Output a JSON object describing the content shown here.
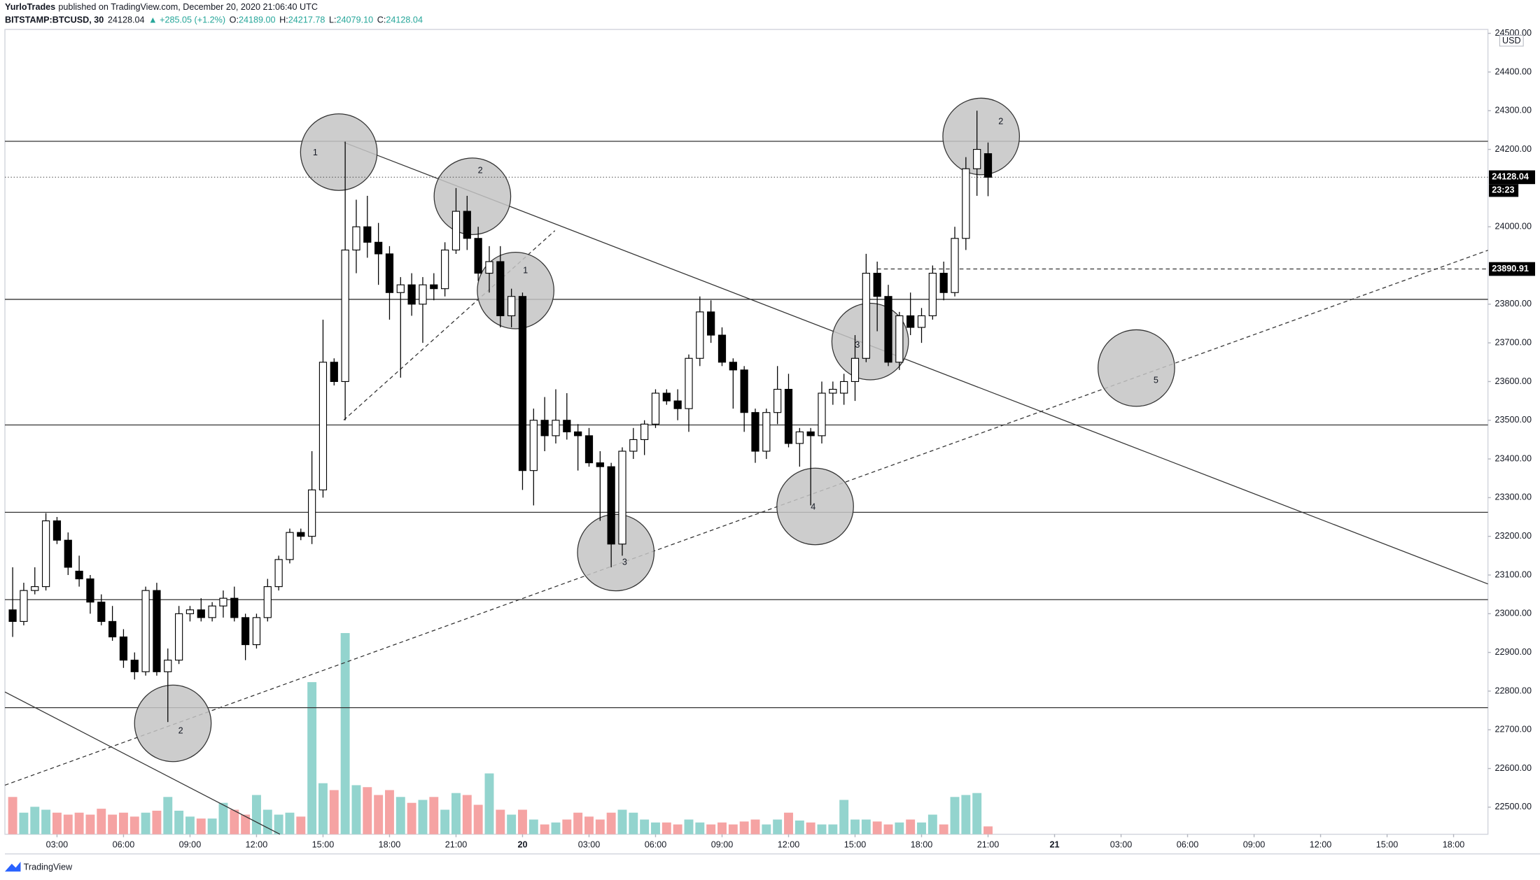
{
  "header": {
    "author": "YurloTrades",
    "published": "published on TradingView.com, December 20, 2020 21:06:40 UTC",
    "symbol": "BITSTAMP:BTCUSD, 30",
    "last": "24128.04",
    "change": "▲ +285.05 (+1.2%)",
    "ohlc": [
      {
        "key": "O:",
        "value": "24189.00"
      },
      {
        "key": "H:",
        "value": "24217.78"
      },
      {
        "key": "L:",
        "value": "24079.10"
      },
      {
        "key": "C:",
        "value": "24128.04"
      }
    ]
  },
  "chart_data": {
    "type": "candlestick",
    "x": [
      1.0,
      1.5,
      2.0,
      2.5,
      3.0,
      3.5,
      4.0,
      4.5,
      5.0,
      5.5,
      6.0,
      6.5,
      7.0,
      7.5,
      8.0,
      8.5,
      9.0,
      9.5,
      10.0,
      10.5,
      11.0,
      11.5,
      12.0,
      12.5,
      13.0,
      13.5,
      14.0,
      14.5,
      15.0,
      15.5,
      16.0,
      16.5,
      17.0,
      17.5,
      18.0,
      18.5,
      19.0,
      19.5,
      20.0,
      20.5,
      21.0,
      21.5,
      22.0,
      22.5,
      23.0,
      23.5,
      24.0,
      24.5,
      25.0,
      25.5,
      26.0,
      26.5,
      27.0,
      27.5,
      28.0,
      28.5,
      29.0,
      29.5,
      30.0,
      30.5,
      31.0,
      31.5,
      32.0,
      32.5,
      33.0,
      33.5,
      34.0,
      34.5,
      35.0,
      35.5,
      36.0,
      36.5,
      37.0,
      37.5,
      38.0,
      38.5,
      39.0,
      39.5,
      40.0,
      40.5,
      41.0,
      41.5,
      42.0,
      42.5,
      43.0,
      43.5,
      44.0,
      44.5,
      45.0
    ],
    "open": [
      23010,
      22980,
      23060,
      23070,
      23240,
      23190,
      23110,
      23090,
      23030,
      22980,
      22940,
      22880,
      22850,
      23060,
      22850,
      22880,
      23000,
      23010,
      22990,
      23020,
      23040,
      22990,
      22920,
      22990,
      23070,
      23140,
      23210,
      23200,
      23320,
      23650,
      23600,
      23940,
      24000,
      23960,
      23930,
      23830,
      23850,
      23800,
      23850,
      23840,
      23940,
      24040,
      23970,
      23880,
      23910,
      23770,
      23820,
      23370,
      23500,
      23460,
      23500,
      23470,
      23460,
      23390,
      23380,
      23180,
      23420,
      23450,
      23490,
      23570,
      23550,
      23530,
      23660,
      23780,
      23720,
      23650,
      23630,
      23520,
      23420,
      23520,
      23580,
      23440,
      23470,
      23460,
      23570,
      23570,
      23600,
      23660,
      23880,
      23820,
      23650,
      23770,
      23740,
      23770,
      23880,
      23830,
      23970,
      24150,
      24189
    ],
    "high": [
      23120,
      23080,
      23120,
      23260,
      23250,
      23210,
      23150,
      23100,
      23050,
      23020,
      22960,
      22900,
      23070,
      23080,
      22910,
      23020,
      23020,
      23040,
      23030,
      23060,
      23070,
      23000,
      23000,
      23090,
      23150,
      23220,
      23220,
      23420,
      23760,
      23660,
      24220,
      24070,
      24080,
      24010,
      23950,
      23870,
      23880,
      23870,
      23880,
      23960,
      24100,
      24080,
      24000,
      23950,
      23950,
      23840,
      23830,
      23530,
      23560,
      23580,
      23570,
      23490,
      23480,
      23420,
      23390,
      23430,
      23480,
      23500,
      23580,
      23580,
      23580,
      23670,
      23820,
      23810,
      23740,
      23660,
      23640,
      23530,
      23530,
      23640,
      23620,
      23480,
      23480,
      23600,
      23600,
      23620,
      23720,
      23930,
      23910,
      23850,
      23780,
      23830,
      23790,
      23900,
      23910,
      24000,
      24180,
      24300,
      24217.78
    ],
    "low": [
      22940,
      22970,
      23050,
      23060,
      23180,
      23100,
      23070,
      23000,
      22970,
      22930,
      22860,
      22830,
      22840,
      22840,
      22720,
      22870,
      22980,
      22980,
      22980,
      22990,
      22980,
      22880,
      22910,
      22980,
      23060,
      23130,
      23190,
      23180,
      23300,
      23590,
      23500,
      23880,
      23920,
      23850,
      23760,
      23610,
      23770,
      23700,
      23810,
      23820,
      23930,
      23940,
      23860,
      23830,
      23740,
      23740,
      23320,
      23280,
      23420,
      23440,
      23450,
      23370,
      23380,
      23240,
      23120,
      23150,
      23400,
      23410,
      23480,
      23540,
      23500,
      23470,
      23640,
      23700,
      23640,
      23530,
      23470,
      23390,
      23400,
      23490,
      23430,
      23380,
      23280,
      23440,
      23540,
      23540,
      23550,
      23650,
      23730,
      23640,
      23630,
      23720,
      23700,
      23760,
      23810,
      23820,
      23940,
      24080,
      24079.1
    ],
    "close": [
      22980,
      23060,
      23070,
      23240,
      23190,
      23120,
      23090,
      23030,
      22980,
      22940,
      22880,
      22850,
      23060,
      22850,
      22880,
      23000,
      23010,
      22990,
      23020,
      23040,
      22990,
      22920,
      22990,
      23070,
      23140,
      23210,
      23200,
      23320,
      23650,
      23600,
      23940,
      24000,
      23960,
      23930,
      23830,
      23850,
      23800,
      23850,
      23840,
      23940,
      24040,
      23970,
      23880,
      23910,
      23770,
      23820,
      23370,
      23500,
      23460,
      23500,
      23470,
      23460,
      23390,
      23380,
      23180,
      23420,
      23450,
      23490,
      23570,
      23550,
      23530,
      23660,
      23780,
      23720,
      23650,
      23630,
      23520,
      23420,
      23520,
      23580,
      23440,
      23470,
      23460,
      23570,
      23580,
      23600,
      23660,
      23880,
      23820,
      23650,
      23770,
      23740,
      23770,
      23880,
      23830,
      23970,
      24150,
      24200,
      24128.04
    ],
    "volume": [
      38,
      22,
      28,
      25,
      22,
      20,
      22,
      20,
      26,
      20,
      22,
      18,
      22,
      24,
      38,
      24,
      18,
      16,
      16,
      32,
      25,
      20,
      40,
      25,
      20,
      22,
      18,
      155,
      52,
      45,
      205,
      50,
      48,
      40,
      45,
      38,
      32,
      35,
      38,
      25,
      42,
      40,
      30,
      62,
      25,
      20,
      25,
      15,
      10,
      12,
      15,
      22,
      18,
      15,
      22,
      25,
      22,
      15,
      12,
      12,
      10,
      15,
      12,
      10,
      12,
      10,
      13,
      15,
      10,
      15,
      22,
      14,
      12,
      10,
      10,
      35,
      15,
      15,
      13,
      10,
      12,
      15,
      12,
      20,
      10,
      38,
      40,
      42,
      8
    ],
    "xlim": [
      0.65,
      67.55
    ],
    "xticks": [
      {
        "value": 3,
        "label": "03:00"
      },
      {
        "value": 6,
        "label": "06:00"
      },
      {
        "value": 9,
        "label": "09:00"
      },
      {
        "value": 12,
        "label": "12:00"
      },
      {
        "value": 15,
        "label": "15:00"
      },
      {
        "value": 18,
        "label": "18:00"
      },
      {
        "value": 21,
        "label": "21:00"
      },
      {
        "value": 24,
        "label": "20"
      },
      {
        "value": 27,
        "label": "03:00"
      },
      {
        "value": 30,
        "label": "06:00"
      },
      {
        "value": 33,
        "label": "09:00"
      },
      {
        "value": 36,
        "label": "12:00"
      },
      {
        "value": 39,
        "label": "15:00"
      },
      {
        "value": 42,
        "label": "18:00"
      },
      {
        "value": 45,
        "label": "21:00"
      },
      {
        "value": 48,
        "label": "21"
      },
      {
        "value": 51,
        "label": "03:00"
      },
      {
        "value": 54,
        "label": "06:00"
      },
      {
        "value": 57,
        "label": "09:00"
      },
      {
        "value": 60,
        "label": "12:00"
      },
      {
        "value": 63,
        "label": "15:00"
      },
      {
        "value": 66,
        "label": "18:00"
      }
    ],
    "ylim": [
      22430,
      24510
    ],
    "yticks": [
      {
        "value": 22500,
        "label": "22500.00"
      },
      {
        "value": 22600,
        "label": "22600.00"
      },
      {
        "value": 22700,
        "label": "22700.00"
      },
      {
        "value": 22800,
        "label": "22800.00"
      },
      {
        "value": 22900,
        "label": "22900.00"
      },
      {
        "value": 23000,
        "label": "23000.00"
      },
      {
        "value": 23100,
        "label": "23100.00"
      },
      {
        "value": 23200,
        "label": "23200.00"
      },
      {
        "value": 23300,
        "label": "23300.00"
      },
      {
        "value": 23400,
        "label": "23400.00"
      },
      {
        "value": 23500,
        "label": "23500.00"
      },
      {
        "value": 23600,
        "label": "23600.00"
      },
      {
        "value": 23700,
        "label": "23700.00"
      },
      {
        "value": 23800,
        "label": "23800.00"
      },
      {
        "value": 24000,
        "label": "24000.00"
      },
      {
        "value": 24200,
        "label": "24200.00"
      },
      {
        "value": 24300,
        "label": "24300.00"
      },
      {
        "value": 24400,
        "label": "24400.00"
      },
      {
        "value": 24500,
        "label": "24500.00"
      }
    ],
    "currency": "USD",
    "last_price": 24128.04,
    "countdown": "23:23",
    "alert_price": 23890.91,
    "colors": {
      "up": "#ffffff",
      "down": "#000000",
      "border": "#000000",
      "volume_up": "#93d4ce",
      "volume_down": "#f5a3a3"
    },
    "annotations": [
      "1",
      "2",
      "1",
      "3",
      "4",
      "3",
      "5",
      "2",
      "2"
    ]
  },
  "brand": "TradingView"
}
